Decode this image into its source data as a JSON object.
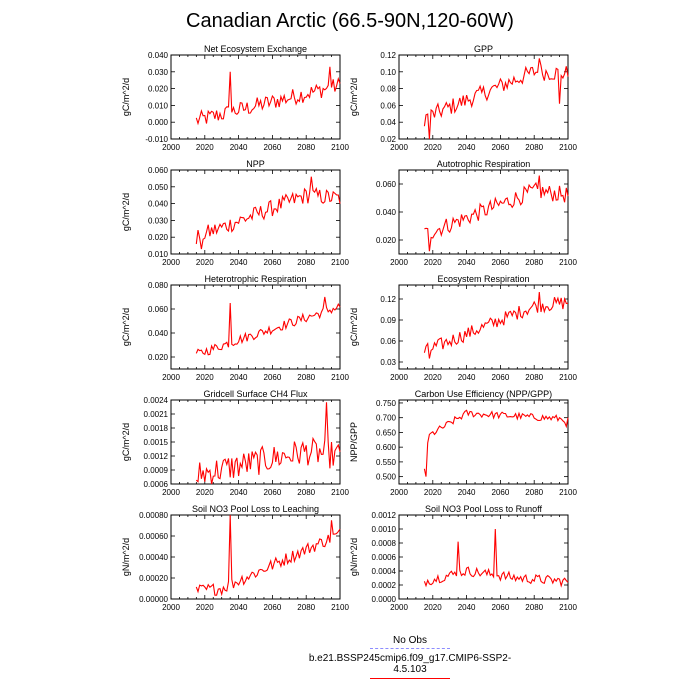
{
  "title": "Canadian Arctic (66.5-90N,120-60W)",
  "legend": {
    "obs_label": "No Obs",
    "model_label": "b.e21.BSSP245cmip6.f09_g17.CMIP6-SSP2-4.5.103",
    "obs_color": "#8c8cff",
    "model_color": "#ff0000"
  },
  "chart_data": [
    {
      "type": "line",
      "title": "Net Ecosystem Exchange",
      "ylabel": "gC/m^2/d",
      "xlim": [
        2000,
        2100
      ],
      "ylim": [
        -0.01,
        0.04
      ],
      "xticks": [
        2000,
        2020,
        2040,
        2060,
        2080,
        2100
      ],
      "yticks": [
        -0.01,
        0.0,
        0.01,
        0.02,
        0.03,
        0.04
      ],
      "yticklabels": [
        "-0.010",
        "0.000",
        "0.010",
        "0.020",
        "0.030",
        "0.040"
      ],
      "series": [
        {
          "name": "b.e21.BSSP245cmip6.f09_g17.CMIP6-SSP2-4.5.103",
          "color": "#ff0000",
          "base": [
            [
              2015,
              0.001
            ],
            [
              2100,
              0.022
            ]
          ],
          "noise": 0.005,
          "spikes": [
            [
              2035,
              0.03
            ],
            [
              2094,
              0.033
            ]
          ]
        }
      ]
    },
    {
      "type": "line",
      "title": "GPP",
      "ylabel": "gC/m^2/d",
      "xlim": [
        2000,
        2100
      ],
      "ylim": [
        0.02,
        0.12
      ],
      "xticks": [
        2000,
        2020,
        2040,
        2060,
        2080,
        2100
      ],
      "yticks": [
        0.02,
        0.04,
        0.06,
        0.08,
        0.1,
        0.12
      ],
      "yticklabels": [
        "0.02",
        "0.04",
        "0.06",
        "0.08",
        "0.10",
        "0.12"
      ],
      "series": [
        {
          "name": "b.e21.BSSP245cmip6.f09_g17.CMIP6-SSP2-4.5.103",
          "color": "#ff0000",
          "base": [
            [
              2015,
              0.045
            ],
            [
              2080,
              0.1
            ],
            [
              2100,
              0.098
            ]
          ],
          "noise": 0.01,
          "spikes": [
            [
              2018,
              0.02
            ],
            [
              2083,
              0.116
            ],
            [
              2095,
              0.062
            ]
          ]
        }
      ]
    },
    {
      "type": "line",
      "title": "NPP",
      "ylabel": "gC/m^2/d",
      "xlim": [
        2000,
        2100
      ],
      "ylim": [
        0.01,
        0.06
      ],
      "xticks": [
        2000,
        2020,
        2040,
        2060,
        2080,
        2100
      ],
      "yticks": [
        0.01,
        0.02,
        0.03,
        0.04,
        0.05,
        0.06
      ],
      "yticklabels": [
        "0.010",
        "0.020",
        "0.030",
        "0.040",
        "0.050",
        "0.060"
      ],
      "series": [
        {
          "name": "b.e21.BSSP245cmip6.f09_g17.CMIP6-SSP2-4.5.103",
          "color": "#ff0000",
          "base": [
            [
              2015,
              0.02
            ],
            [
              2080,
              0.045
            ],
            [
              2100,
              0.043
            ]
          ],
          "noise": 0.005,
          "spikes": [
            [
              2018,
              0.013
            ],
            [
              2083,
              0.056
            ]
          ]
        }
      ]
    },
    {
      "type": "line",
      "title": "Autotrophic Respiration",
      "ylabel": "",
      "xlim": [
        2000,
        2100
      ],
      "ylim": [
        0.01,
        0.07
      ],
      "xticks": [
        2000,
        2020,
        2040,
        2060,
        2080,
        2100
      ],
      "yticks": [
        0.02,
        0.04,
        0.06
      ],
      "yticklabels": [
        "0.020",
        "0.040",
        "0.060"
      ],
      "series": [
        {
          "name": "b.e21.BSSP245cmip6.f09_g17.CMIP6-SSP2-4.5.103",
          "color": "#ff0000",
          "base": [
            [
              2015,
              0.024
            ],
            [
              2080,
              0.055
            ],
            [
              2100,
              0.052
            ]
          ],
          "noise": 0.006,
          "spikes": [
            [
              2018,
              0.012
            ],
            [
              2083,
              0.066
            ]
          ]
        }
      ]
    },
    {
      "type": "line",
      "title": "Heterotrophic Respiration",
      "ylabel": "gC/m^2/d",
      "xlim": [
        2000,
        2100
      ],
      "ylim": [
        0.01,
        0.08
      ],
      "xticks": [
        2000,
        2020,
        2040,
        2060,
        2080,
        2100
      ],
      "yticks": [
        0.02,
        0.04,
        0.06,
        0.08
      ],
      "yticklabels": [
        "0.020",
        "0.040",
        "0.060",
        "0.080"
      ],
      "series": [
        {
          "name": "b.e21.BSSP245cmip6.f09_g17.CMIP6-SSP2-4.5.103",
          "color": "#ff0000",
          "base": [
            [
              2015,
              0.022
            ],
            [
              2035,
              0.032
            ],
            [
              2100,
              0.062
            ]
          ],
          "noise": 0.004,
          "spikes": [
            [
              2035,
              0.065
            ],
            [
              2091,
              0.07
            ]
          ]
        }
      ]
    },
    {
      "type": "line",
      "title": "Ecosystem Respiration",
      "ylabel": "gC/m^2/d",
      "xlim": [
        2000,
        2100
      ],
      "ylim": [
        0.02,
        0.14
      ],
      "xticks": [
        2000,
        2020,
        2040,
        2060,
        2080,
        2100
      ],
      "yticks": [
        0.03,
        0.06,
        0.09,
        0.12
      ],
      "yticklabels": [
        "0.03",
        "0.06",
        "0.09",
        "0.12"
      ],
      "series": [
        {
          "name": "b.e21.BSSP245cmip6.f09_g17.CMIP6-SSP2-4.5.103",
          "color": "#ff0000",
          "base": [
            [
              2015,
              0.045
            ],
            [
              2080,
              0.11
            ],
            [
              2100,
              0.115
            ]
          ],
          "noise": 0.01,
          "spikes": [
            [
              2018,
              0.035
            ],
            [
              2083,
              0.13
            ]
          ]
        }
      ]
    },
    {
      "type": "line",
      "title": "Gridcell Surface CH4 Flux",
      "ylabel": "gC/m^2/d",
      "xlim": [
        2000,
        2100
      ],
      "ylim": [
        0.0006,
        0.0024
      ],
      "xticks": [
        2000,
        2020,
        2040,
        2060,
        2080,
        2100
      ],
      "yticks": [
        0.0006,
        0.0009,
        0.0012,
        0.0015,
        0.0018,
        0.0021,
        0.0024
      ],
      "yticklabels": [
        "0.0006",
        "0.0009",
        "0.0012",
        "0.0015",
        "0.0018",
        "0.0021",
        "0.0024"
      ],
      "series": [
        {
          "name": "b.e21.BSSP245cmip6.f09_g17.CMIP6-SSP2-4.5.103",
          "color": "#ff0000",
          "base": [
            [
              2015,
              0.0008
            ],
            [
              2080,
              0.0013
            ],
            [
              2100,
              0.0012
            ]
          ],
          "noise": 0.0003,
          "spikes": [
            [
              2016,
              0.00065
            ],
            [
              2092,
              0.00235
            ]
          ]
        }
      ]
    },
    {
      "type": "line",
      "title": "Carbon Use Efficiency (NPP/GPP)",
      "ylabel": "NPP/GPP",
      "xlim": [
        2000,
        2100
      ],
      "ylim": [
        0.475,
        0.76
      ],
      "xticks": [
        2000,
        2020,
        2040,
        2060,
        2080,
        2100
      ],
      "yticks": [
        0.5,
        0.55,
        0.6,
        0.65,
        0.7,
        0.75
      ],
      "yticklabels": [
        "0.500",
        "0.550",
        "0.600",
        "0.650",
        "0.700",
        "0.750"
      ],
      "series": [
        {
          "name": "b.e21.BSSP245cmip6.f09_g17.CMIP6-SSP2-4.5.103",
          "color": "#ff0000",
          "base": [
            [
              2015,
              0.53
            ],
            [
              2018,
              0.64
            ],
            [
              2040,
              0.715
            ],
            [
              2100,
              0.695
            ]
          ],
          "noise": 0.012,
          "spikes": [
            [
              2016,
              0.5
            ],
            [
              2099,
              0.67
            ]
          ]
        }
      ]
    },
    {
      "type": "line",
      "title": "Soil NO3 Pool Loss to Leaching",
      "ylabel": "gN/m^2/d",
      "xlim": [
        2000,
        2100
      ],
      "ylim": [
        0.0,
        0.0008
      ],
      "xticks": [
        2000,
        2020,
        2040,
        2060,
        2080,
        2100
      ],
      "yticks": [
        0.0,
        0.0002,
        0.0004,
        0.0006,
        0.0008
      ],
      "yticklabels": [
        "0.00000",
        "0.00020",
        "0.00040",
        "0.00060",
        "0.00080"
      ],
      "series": [
        {
          "name": "b.e21.BSSP245cmip6.f09_g17.CMIP6-SSP2-4.5.103",
          "color": "#ff0000",
          "base": [
            [
              2015,
              8e-05
            ],
            [
              2030,
              0.0001
            ],
            [
              2100,
              0.00062
            ]
          ],
          "noise": 6e-05,
          "spikes": [
            [
              2035,
              0.0008
            ],
            [
              2095,
              0.00075
            ]
          ]
        }
      ]
    },
    {
      "type": "line",
      "title": "Soil NO3 Pool Loss to Runoff",
      "ylabel": "gN/m^2/d",
      "xlim": [
        2000,
        2100
      ],
      "ylim": [
        0.0,
        0.0012
      ],
      "xticks": [
        2000,
        2020,
        2040,
        2060,
        2080,
        2100
      ],
      "yticks": [
        0.0,
        0.0002,
        0.0004,
        0.0006,
        0.0008,
        0.001,
        0.0012
      ],
      "yticklabels": [
        "0.0000",
        "0.0002",
        "0.0004",
        "0.0006",
        "0.0008",
        "0.0010",
        "0.0012"
      ],
      "series": [
        {
          "name": "b.e21.BSSP245cmip6.f09_g17.CMIP6-SSP2-4.5.103",
          "color": "#ff0000",
          "base": [
            [
              2015,
              0.00025
            ],
            [
              2040,
              0.0004
            ],
            [
              2070,
              0.0003
            ],
            [
              2100,
              0.00025
            ]
          ],
          "noise": 7e-05,
          "spikes": [
            [
              2035,
              0.00082
            ],
            [
              2057,
              0.001
            ]
          ]
        }
      ]
    }
  ]
}
